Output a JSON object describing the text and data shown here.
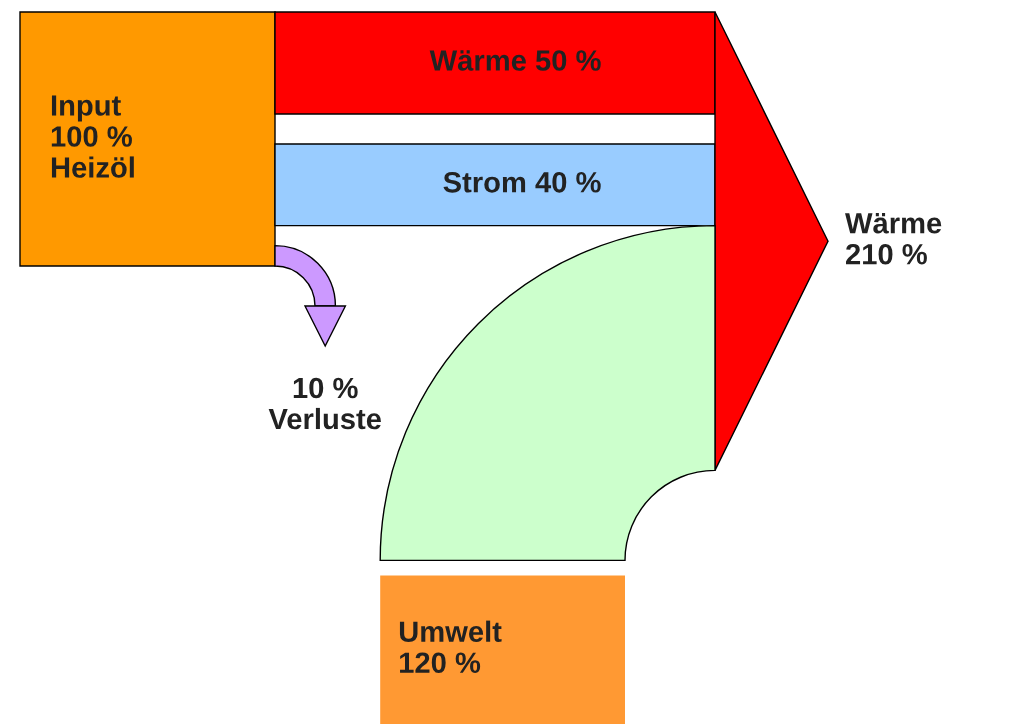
{
  "chart_data": {
    "type": "other",
    "categories": [
      "Input",
      "Wärme",
      "Strom",
      "Verluste",
      null,
      "Umwelt",
      "Wärme"
    ],
    "values": [
      100,
      50,
      40,
      10,
      null,
      120,
      210
    ],
    "value_labels": [
      "100 %",
      "50 %",
      "40 %",
      "10 %",
      null,
      "120 %",
      "210 %"
    ],
    "colors": [
      "#ff9900",
      "#ff0000",
      "#99ccff",
      "#cc99ff",
      "#ccffcc",
      "#ff9933",
      "#ff0000"
    ],
    "annotations": [
      "Heizöl"
    ]
  }
}
